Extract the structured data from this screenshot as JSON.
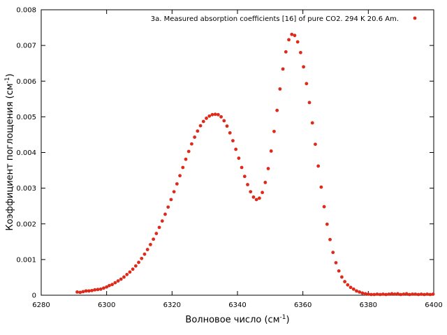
{
  "chart_data": {
    "type": "scatter",
    "title": "",
    "xlabel": "Волновое число (см",
    "xlabel_sup": "-1",
    "xlabel_suffix": ")",
    "ylabel": "Коэффициент поглощения (см",
    "ylabel_sup": "-1",
    "ylabel_suffix": ")",
    "xlim": [
      6280,
      6400
    ],
    "ylim": [
      0,
      0.008
    ],
    "x_ticks": [
      6280,
      6300,
      6320,
      6340,
      6360,
      6380,
      6400
    ],
    "x_tick_labels": [
      "6280",
      "6300",
      "6320",
      "6340",
      "6360",
      "6380",
      "6400"
    ],
    "y_ticks": [
      0,
      0.001,
      0.002,
      0.003,
      0.004,
      0.005,
      0.006,
      0.007,
      0.008
    ],
    "y_tick_labels": [
      "0",
      "0.001",
      "0.002",
      "0.003",
      "0.004",
      "0.005",
      "0.006",
      "0.007",
      "0.008"
    ],
    "grid": false,
    "legend_position": "top-right",
    "series": [
      {
        "name": "3a. Measured absorption coefficients [16] of pure CO2.  294 K  20.6 Am.",
        "color": "#dd2a1a",
        "marker": "circle",
        "x": [
          6291.0,
          6291.9,
          6292.8,
          6293.7,
          6294.6,
          6295.5,
          6296.4,
          6297.3,
          6298.2,
          6299.1,
          6300.0,
          6300.8,
          6301.7,
          6302.6,
          6303.5,
          6304.4,
          6305.3,
          6306.2,
          6307.1,
          6308.0,
          6308.9,
          6309.8,
          6310.7,
          6311.6,
          6312.5,
          6313.4,
          6314.3,
          6315.2,
          6316.1,
          6317.0,
          6317.9,
          6318.8,
          6319.7,
          6320.6,
          6321.5,
          6322.4,
          6323.3,
          6324.2,
          6325.1,
          6326.0,
          6326.9,
          6327.8,
          6328.7,
          6329.6,
          6330.5,
          6331.4,
          6332.3,
          6333.2,
          6334.1,
          6335.0,
          6335.9,
          6336.8,
          6337.7,
          6338.6,
          6339.5,
          6340.4,
          6341.3,
          6342.2,
          6343.1,
          6344.0,
          6344.9,
          6345.8,
          6346.7,
          6347.6,
          6348.5,
          6349.4,
          6350.3,
          6351.2,
          6352.1,
          6353.0,
          6353.9,
          6354.8,
          6355.7,
          6356.6,
          6357.5,
          6358.4,
          6359.3,
          6360.2,
          6361.1,
          6362.0,
          6362.9,
          6363.8,
          6364.7,
          6365.6,
          6366.5,
          6367.4,
          6368.3,
          6369.2,
          6370.1,
          6371.0,
          6371.9,
          6372.8,
          6373.7,
          6374.6,
          6375.5,
          6376.4,
          6377.3,
          6378.2,
          6379.1,
          6380.0,
          6380.9,
          6381.8,
          6382.7,
          6383.6,
          6384.5,
          6385.4,
          6386.3,
          6387.2,
          6388.1,
          6389.0,
          6389.9,
          6390.8,
          6391.7,
          6392.6,
          6393.5,
          6394.4,
          6395.3,
          6396.2,
          6397.1,
          6398.0,
          6398.9,
          6399.8
        ],
        "y": [
          9e-05,
          8e-05,
          0.0001,
          0.00012,
          0.00012,
          0.00013,
          0.00015,
          0.00016,
          0.00017,
          0.0002,
          0.00023,
          0.00027,
          0.0003,
          0.00035,
          0.0004,
          0.00045,
          0.00051,
          0.00058,
          0.00065,
          0.00073,
          0.00082,
          0.00092,
          0.00103,
          0.00115,
          0.00128,
          0.00142,
          0.00157,
          0.00173,
          0.0019,
          0.00208,
          0.00227,
          0.00247,
          0.00268,
          0.0029,
          0.00312,
          0.00335,
          0.00358,
          0.00381,
          0.00403,
          0.00424,
          0.00443,
          0.0046,
          0.00475,
          0.00487,
          0.00496,
          0.00502,
          0.00506,
          0.00507,
          0.00506,
          0.005,
          0.00489,
          0.00474,
          0.00455,
          0.00433,
          0.00409,
          0.00384,
          0.00358,
          0.00333,
          0.0031,
          0.0029,
          0.00275,
          0.00268,
          0.00272,
          0.00288,
          0.00316,
          0.00355,
          0.00404,
          0.00459,
          0.00518,
          0.00578,
          0.00634,
          0.00682,
          0.00716,
          0.00731,
          0.00728,
          0.0071,
          0.0068,
          0.0064,
          0.00593,
          0.0054,
          0.00483,
          0.00423,
          0.00362,
          0.00303,
          0.00248,
          0.00199,
          0.00156,
          0.0012,
          0.00091,
          0.00068,
          0.00051,
          0.00038,
          0.00029,
          0.00022,
          0.00017,
          0.00012,
          9e-05,
          6e-05,
          4e-05,
          3e-05,
          2e-05,
          2e-05,
          3e-05,
          2e-05,
          3e-05,
          2e-05,
          3e-05,
          4e-05,
          3e-05,
          4e-05,
          2e-05,
          3e-05,
          4e-05,
          2e-05,
          3e-05,
          3e-05,
          2e-05,
          3e-05,
          2e-05,
          3e-05,
          2e-05,
          3e-05
        ]
      }
    ]
  }
}
